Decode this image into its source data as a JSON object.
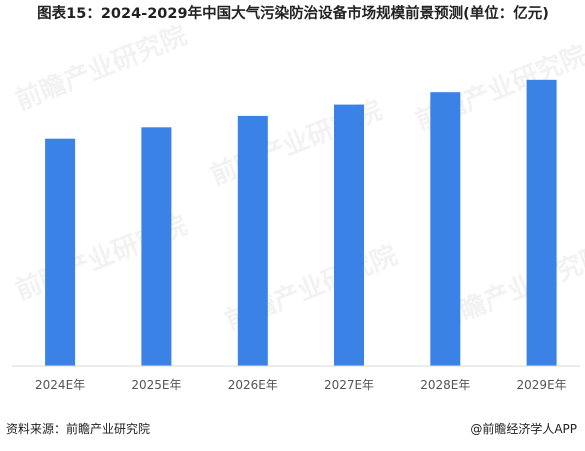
{
  "title": "图表15：2024-2029年中国大气污染防治设备市场规模前景预测(单位：亿元)",
  "chart_data": {
    "type": "bar",
    "categories": [
      "2024E年",
      "2025E年",
      "2026E年",
      "2027E年",
      "2028E年",
      "2029E年"
    ],
    "values": [
      220,
      231,
      242,
      253,
      265,
      277
    ],
    "ylim": [
      0,
      300
    ],
    "bar_color": "#3b82e6",
    "grid": false,
    "legend": "none"
  },
  "watermark": "前瞻产业研究院",
  "footer": {
    "source": "资料来源：前瞻产业研究院",
    "brand": "@前瞻经济学人APP"
  }
}
